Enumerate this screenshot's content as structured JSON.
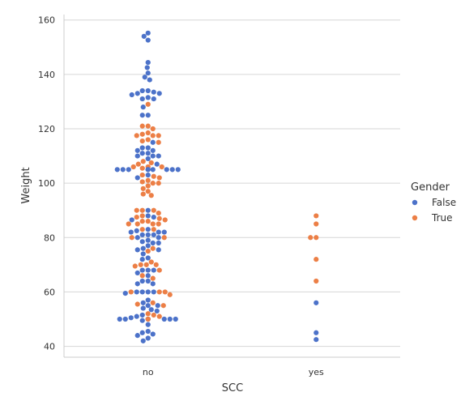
{
  "chart_data": {
    "type": "scatter",
    "subtype": "swarm",
    "title": "",
    "xlabel": "SCC",
    "ylabel": "Weight",
    "categories": [
      "no",
      "yes"
    ],
    "ylim": [
      36,
      162
    ],
    "yticks": [
      40,
      60,
      80,
      100,
      120,
      140,
      160
    ],
    "grid": "horizontal",
    "legend": {
      "title": "Gender",
      "position": "right"
    },
    "series": [
      {
        "name": "False",
        "color": "#4c72c9",
        "points": [
          {
            "x": "no",
            "y": 155.2
          },
          {
            "x": "no",
            "y": 154
          },
          {
            "x": "no",
            "y": 152.6
          },
          {
            "x": "no",
            "y": 144.4
          },
          {
            "x": "no",
            "y": 142.5
          },
          {
            "x": "no",
            "y": 140.5
          },
          {
            "x": "no",
            "y": 139
          },
          {
            "x": "no",
            "y": 138
          },
          {
            "x": "no",
            "y": 134
          },
          {
            "x": "no",
            "y": 134
          },
          {
            "x": "no",
            "y": 133.5
          },
          {
            "x": "no",
            "y": 133
          },
          {
            "x": "no",
            "y": 133
          },
          {
            "x": "no",
            "y": 132.5
          },
          {
            "x": "no",
            "y": 131.5
          },
          {
            "x": "no",
            "y": 131
          },
          {
            "x": "no",
            "y": 131
          },
          {
            "x": "no",
            "y": 128
          },
          {
            "x": "no",
            "y": 125
          },
          {
            "x": "no",
            "y": 125
          },
          {
            "x": "no",
            "y": 115
          },
          {
            "x": "no",
            "y": 113
          },
          {
            "x": "no",
            "y": 113
          },
          {
            "x": "no",
            "y": 112
          },
          {
            "x": "no",
            "y": 112
          },
          {
            "x": "no",
            "y": 111
          },
          {
            "x": "no",
            "y": 111
          },
          {
            "x": "no",
            "y": 110
          },
          {
            "x": "no",
            "y": 110
          },
          {
            "x": "no",
            "y": 110
          },
          {
            "x": "no",
            "y": 109
          },
          {
            "x": "no",
            "y": 107
          },
          {
            "x": "no",
            "y": 105
          },
          {
            "x": "no",
            "y": 105
          },
          {
            "x": "no",
            "y": 105
          },
          {
            "x": "no",
            "y": 105
          },
          {
            "x": "no",
            "y": 105
          },
          {
            "x": "no",
            "y": 105
          },
          {
            "x": "no",
            "y": 105
          },
          {
            "x": "no",
            "y": 105
          },
          {
            "x": "no",
            "y": 105
          },
          {
            "x": "no",
            "y": 105
          },
          {
            "x": "no",
            "y": 103
          },
          {
            "x": "no",
            "y": 102
          },
          {
            "x": "no",
            "y": 90
          },
          {
            "x": "no",
            "y": 88
          },
          {
            "x": "no",
            "y": 87.5
          },
          {
            "x": "no",
            "y": 86.5
          },
          {
            "x": "no",
            "y": 83
          },
          {
            "x": "no",
            "y": 82.5
          },
          {
            "x": "no",
            "y": 82
          },
          {
            "x": "no",
            "y": 82
          },
          {
            "x": "no",
            "y": 82
          },
          {
            "x": "no",
            "y": 81
          },
          {
            "x": "no",
            "y": 81
          },
          {
            "x": "no",
            "y": 81
          },
          {
            "x": "no",
            "y": 80
          },
          {
            "x": "no",
            "y": 80
          },
          {
            "x": "no",
            "y": 79
          },
          {
            "x": "no",
            "y": 78.5
          },
          {
            "x": "no",
            "y": 78
          },
          {
            "x": "no",
            "y": 78
          },
          {
            "x": "no",
            "y": 77
          },
          {
            "x": "no",
            "y": 76
          },
          {
            "x": "no",
            "y": 75.5
          },
          {
            "x": "no",
            "y": 75.5
          },
          {
            "x": "no",
            "y": 74
          },
          {
            "x": "no",
            "y": 72.5
          },
          {
            "x": "no",
            "y": 72
          },
          {
            "x": "no",
            "y": 68
          },
          {
            "x": "no",
            "y": 68
          },
          {
            "x": "no",
            "y": 68
          },
          {
            "x": "no",
            "y": 67
          },
          {
            "x": "no",
            "y": 66
          },
          {
            "x": "no",
            "y": 64
          },
          {
            "x": "no",
            "y": 64
          },
          {
            "x": "no",
            "y": 63
          },
          {
            "x": "no",
            "y": 63
          },
          {
            "x": "no",
            "y": 60
          },
          {
            "x": "no",
            "y": 60
          },
          {
            "x": "no",
            "y": 60
          },
          {
            "x": "no",
            "y": 60
          },
          {
            "x": "no",
            "y": 59.5
          },
          {
            "x": "no",
            "y": 57
          },
          {
            "x": "no",
            "y": 56
          },
          {
            "x": "no",
            "y": 55
          },
          {
            "x": "no",
            "y": 55
          },
          {
            "x": "no",
            "y": 54
          },
          {
            "x": "no",
            "y": 53.5
          },
          {
            "x": "no",
            "y": 53
          },
          {
            "x": "no",
            "y": 51.5
          },
          {
            "x": "no",
            "y": 51
          },
          {
            "x": "no",
            "y": 50.5
          },
          {
            "x": "no",
            "y": 50
          },
          {
            "x": "no",
            "y": 50
          },
          {
            "x": "no",
            "y": 50
          },
          {
            "x": "no",
            "y": 50
          },
          {
            "x": "no",
            "y": 50
          },
          {
            "x": "no",
            "y": 50
          },
          {
            "x": "no",
            "y": 50
          },
          {
            "x": "no",
            "y": 49.5
          },
          {
            "x": "no",
            "y": 48
          },
          {
            "x": "no",
            "y": 45.5
          },
          {
            "x": "no",
            "y": 45
          },
          {
            "x": "no",
            "y": 44.5
          },
          {
            "x": "no",
            "y": 44
          },
          {
            "x": "no",
            "y": 43
          },
          {
            "x": "no",
            "y": 42
          },
          {
            "x": "yes",
            "y": 56
          },
          {
            "x": "yes",
            "y": 45
          },
          {
            "x": "yes",
            "y": 42.5
          }
        ]
      },
      {
        "name": "True",
        "color": "#ec7f46",
        "points": [
          {
            "x": "no",
            "y": 129
          },
          {
            "x": "no",
            "y": 121
          },
          {
            "x": "no",
            "y": 121
          },
          {
            "x": "no",
            "y": 120
          },
          {
            "x": "no",
            "y": 118.5
          },
          {
            "x": "no",
            "y": 118
          },
          {
            "x": "no",
            "y": 117.5
          },
          {
            "x": "no",
            "y": 117.5
          },
          {
            "x": "no",
            "y": 117.5
          },
          {
            "x": "no",
            "y": 116
          },
          {
            "x": "no",
            "y": 115.5
          },
          {
            "x": "no",
            "y": 115
          },
          {
            "x": "no",
            "y": 108
          },
          {
            "x": "no",
            "y": 107.5
          },
          {
            "x": "no",
            "y": 107
          },
          {
            "x": "no",
            "y": 106
          },
          {
            "x": "no",
            "y": 106
          },
          {
            "x": "no",
            "y": 106
          },
          {
            "x": "no",
            "y": 105.5
          },
          {
            "x": "no",
            "y": 103
          },
          {
            "x": "no",
            "y": 102.5
          },
          {
            "x": "no",
            "y": 102
          },
          {
            "x": "no",
            "y": 101
          },
          {
            "x": "no",
            "y": 100.5
          },
          {
            "x": "no",
            "y": 100
          },
          {
            "x": "no",
            "y": 100
          },
          {
            "x": "no",
            "y": 99
          },
          {
            "x": "no",
            "y": 98
          },
          {
            "x": "no",
            "y": 97
          },
          {
            "x": "no",
            "y": 96
          },
          {
            "x": "no",
            "y": 95.5
          },
          {
            "x": "no",
            "y": 90
          },
          {
            "x": "no",
            "y": 90
          },
          {
            "x": "no",
            "y": 90
          },
          {
            "x": "no",
            "y": 89
          },
          {
            "x": "no",
            "y": 88
          },
          {
            "x": "no",
            "y": 87.5
          },
          {
            "x": "no",
            "y": 87
          },
          {
            "x": "no",
            "y": 86.5
          },
          {
            "x": "no",
            "y": 86
          },
          {
            "x": "no",
            "y": 86
          },
          {
            "x": "no",
            "y": 85
          },
          {
            "x": "no",
            "y": 85
          },
          {
            "x": "no",
            "y": 85
          },
          {
            "x": "no",
            "y": 85
          },
          {
            "x": "no",
            "y": 83
          },
          {
            "x": "no",
            "y": 83
          },
          {
            "x": "no",
            "y": 80
          },
          {
            "x": "no",
            "y": 80
          },
          {
            "x": "no",
            "y": 76
          },
          {
            "x": "no",
            "y": 75
          },
          {
            "x": "no",
            "y": 71
          },
          {
            "x": "no",
            "y": 70
          },
          {
            "x": "no",
            "y": 70
          },
          {
            "x": "no",
            "y": 70
          },
          {
            "x": "no",
            "y": 69.5
          },
          {
            "x": "no",
            "y": 68
          },
          {
            "x": "no",
            "y": 66
          },
          {
            "x": "no",
            "y": 65
          },
          {
            "x": "no",
            "y": 60
          },
          {
            "x": "no",
            "y": 60
          },
          {
            "x": "no",
            "y": 60
          },
          {
            "x": "no",
            "y": 59
          },
          {
            "x": "no",
            "y": 56
          },
          {
            "x": "no",
            "y": 55.5
          },
          {
            "x": "no",
            "y": 55
          },
          {
            "x": "no",
            "y": 52
          },
          {
            "x": "no",
            "y": 51.5
          },
          {
            "x": "no",
            "y": 51
          },
          {
            "x": "no",
            "y": 50
          },
          {
            "x": "yes",
            "y": 88
          },
          {
            "x": "yes",
            "y": 85
          },
          {
            "x": "yes",
            "y": 80
          },
          {
            "x": "yes",
            "y": 80
          },
          {
            "x": "yes",
            "y": 72
          },
          {
            "x": "yes",
            "y": 64
          }
        ]
      }
    ]
  }
}
